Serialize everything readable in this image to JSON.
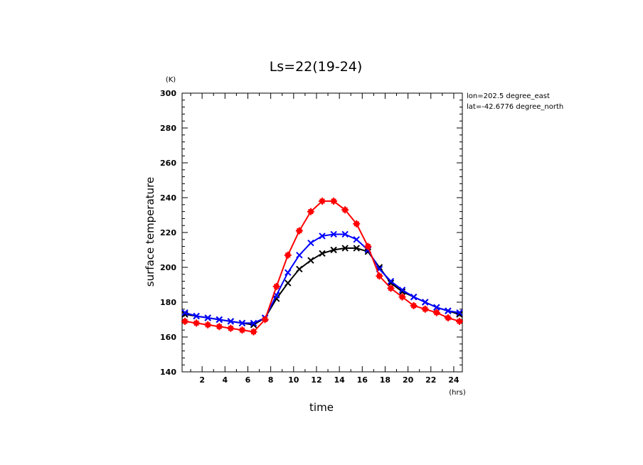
{
  "chart_data": {
    "type": "line",
    "title": "Ls=22(19-24)",
    "xlabel": "time",
    "ylabel": "surface temperature",
    "x_unit": "(hrs)",
    "y_unit": "(K)",
    "xlim": [
      0.25,
      24.75
    ],
    "ylim": [
      140,
      300
    ],
    "xticks": [
      2,
      4,
      6,
      8,
      10,
      12,
      14,
      16,
      18,
      20,
      22,
      24
    ],
    "yticks": [
      140,
      160,
      180,
      200,
      220,
      240,
      260,
      280,
      300
    ],
    "annotations": [
      "lon=202.5 degree_east",
      "lat=-42.6776 degree_north"
    ],
    "grid": false,
    "x": [
      0.5,
      1.5,
      2.5,
      3.5,
      4.5,
      5.5,
      6.5,
      7.5,
      8.5,
      9.5,
      10.5,
      11.5,
      12.5,
      13.5,
      14.5,
      15.5,
      16.5,
      17.5,
      18.5,
      19.5,
      20.5,
      21.5,
      22.5,
      23.5,
      24.5
    ],
    "series": [
      {
        "color": "#000000",
        "marker": "x",
        "values": [
          173,
          172,
          171,
          170,
          169,
          168,
          167,
          171,
          182,
          191,
          199,
          204,
          208,
          210,
          211,
          211,
          209,
          200,
          191,
          186,
          183,
          180,
          177,
          175,
          173
        ]
      },
      {
        "color": "#0000ff",
        "marker": "x",
        "values": [
          174,
          172,
          171,
          170,
          169,
          168,
          168,
          171,
          184,
          197,
          207,
          214,
          218,
          219,
          219,
          216,
          210,
          199,
          192,
          187,
          183,
          180,
          177,
          175,
          174
        ]
      },
      {
        "color": "#ff0000",
        "marker": "+",
        "values": [
          169,
          168,
          167,
          166,
          165,
          164,
          163,
          170,
          189,
          207,
          221,
          232,
          238,
          238,
          233,
          225,
          212,
          195,
          188,
          183,
          178,
          176,
          174,
          171,
          169
        ]
      }
    ]
  }
}
